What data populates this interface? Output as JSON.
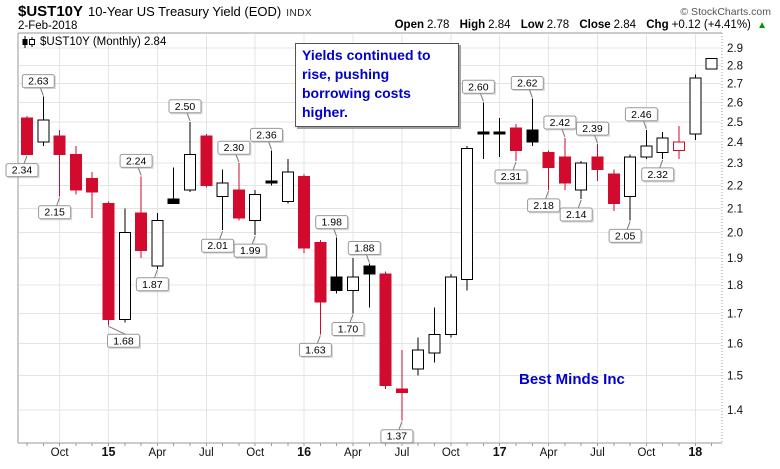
{
  "header": {
    "symbol": "$UST10Y",
    "title": "10-Year US Treasury Yield (EOD)",
    "exchange": "INDX",
    "copyright": "© StockCharts.com",
    "date": "2-Feb-2018",
    "quote_labels": {
      "open": "Open",
      "high": "High",
      "low": "Low",
      "close": "Close",
      "chg": "Chg"
    },
    "quote_values": {
      "open": "2.78",
      "high": "2.84",
      "low": "2.78",
      "close": "2.84",
      "chg": "+0.12 (+4.41%)"
    },
    "arrow_up": "▲"
  },
  "legend": {
    "text": "$UST10Y (Monthly) 2.84"
  },
  "annotation": {
    "text": "Yields continued to rise, pushing borrowing costs higher."
  },
  "watermark": {
    "text": "Best Minds Inc"
  },
  "colors": {
    "down": "#d20a2e",
    "up_fill": "#ffffff",
    "outline": "#000000",
    "grid": "#e4e4e4",
    "border": "#9a9a9a",
    "axis_text": "#111111",
    "label_border": "#999999",
    "annotation_blue": "#0000cc",
    "arrow_green": "#009600"
  },
  "chart_data": {
    "type": "candlestick",
    "timeframe": "Monthly",
    "scale": "log",
    "ylim": [
      1.4,
      2.9
    ],
    "y_ticks": [
      "2.9",
      "2.8",
      "2.7",
      "2.6",
      "2.5",
      "2.4",
      "2.3",
      "2.2",
      "2.1",
      "2.0",
      "1.9",
      "1.8",
      "1.7",
      "1.6",
      "1.5",
      "1.4"
    ],
    "x_ticks": [
      {
        "label": "Oct",
        "i": 2,
        "bold": false
      },
      {
        "label": "15",
        "i": 5,
        "bold": true
      },
      {
        "label": "Apr",
        "i": 8,
        "bold": false
      },
      {
        "label": "Jul",
        "i": 11,
        "bold": false
      },
      {
        "label": "Oct",
        "i": 14,
        "bold": false
      },
      {
        "label": "16",
        "i": 17,
        "bold": true
      },
      {
        "label": "Apr",
        "i": 20,
        "bold": false
      },
      {
        "label": "Jul",
        "i": 23,
        "bold": false
      },
      {
        "label": "Oct",
        "i": 26,
        "bold": false
      },
      {
        "label": "17",
        "i": 29,
        "bold": true
      },
      {
        "label": "Apr",
        "i": 32,
        "bold": false
      },
      {
        "label": "Jul",
        "i": 35,
        "bold": false
      },
      {
        "label": "Oct",
        "i": 38,
        "bold": false
      },
      {
        "label": "18",
        "i": 41,
        "bold": true
      }
    ],
    "candles": [
      {
        "m": "Aug 2014",
        "o": 2.52,
        "h": 2.53,
        "l": 2.34,
        "c": 2.34,
        "t": "down",
        "lab": "2.34",
        "side": "below"
      },
      {
        "m": "Sep 2014",
        "o": 2.4,
        "h": 2.63,
        "l": 2.38,
        "c": 2.51,
        "t": "up",
        "lab": "2.63",
        "side": "above"
      },
      {
        "m": "Oct 2014",
        "o": 2.43,
        "h": 2.46,
        "l": 2.15,
        "c": 2.34,
        "t": "down",
        "lab": "2.15",
        "side": "below"
      },
      {
        "m": "Nov 2014",
        "o": 2.34,
        "h": 2.38,
        "l": 2.16,
        "c": 2.18,
        "t": "down"
      },
      {
        "m": "Dec 2014",
        "o": 2.23,
        "h": 2.26,
        "l": 2.06,
        "c": 2.17,
        "t": "down"
      },
      {
        "m": "Jan 2015",
        "o": 2.12,
        "h": 2.13,
        "l": 1.66,
        "c": 1.68,
        "t": "down",
        "lab": "1.68",
        "side": "below",
        "dx": 15
      },
      {
        "m": "Feb 2015",
        "o": 1.68,
        "h": 2.1,
        "l": 1.67,
        "c": 2.0,
        "t": "up"
      },
      {
        "m": "Mar 2015",
        "o": 2.08,
        "h": 2.24,
        "l": 1.9,
        "c": 1.93,
        "t": "down",
        "lab": "2.24",
        "side": "above"
      },
      {
        "m": "Apr 2015",
        "o": 1.87,
        "h": 2.08,
        "l": 1.86,
        "c": 2.05,
        "t": "up",
        "lab": "1.87",
        "side": "below"
      },
      {
        "m": "May 2015",
        "o": 2.12,
        "h": 2.28,
        "l": 2.12,
        "c": 2.14,
        "t": "black"
      },
      {
        "m": "Jun 2015",
        "o": 2.18,
        "h": 2.5,
        "l": 2.17,
        "c": 2.34,
        "t": "up",
        "lab": "2.50",
        "side": "above"
      },
      {
        "m": "Jul 2015",
        "o": 2.43,
        "h": 2.44,
        "l": 2.19,
        "c": 2.2,
        "t": "down"
      },
      {
        "m": "Aug 2015",
        "o": 2.15,
        "h": 2.27,
        "l": 2.01,
        "c": 2.21,
        "t": "up",
        "lab": "2.01",
        "side": "below"
      },
      {
        "m": "Sep 2015",
        "o": 2.18,
        "h": 2.3,
        "l": 2.05,
        "c": 2.06,
        "t": "down",
        "lab": "2.30",
        "side": "above"
      },
      {
        "m": "Oct 2015",
        "o": 2.05,
        "h": 2.18,
        "l": 1.99,
        "c": 2.16,
        "t": "up",
        "lab": "1.99",
        "side": "below"
      },
      {
        "m": "Nov 2015",
        "o": 2.22,
        "h": 2.36,
        "l": 2.2,
        "c": 2.21,
        "t": "black",
        "lab": "2.36",
        "side": "above"
      },
      {
        "m": "Dec 2015",
        "o": 2.13,
        "h": 2.32,
        "l": 2.12,
        "c": 2.26,
        "t": "up"
      },
      {
        "m": "Jan 2016",
        "o": 2.24,
        "h": 2.25,
        "l": 1.92,
        "c": 1.94,
        "t": "down"
      },
      {
        "m": "Feb 2016",
        "o": 1.96,
        "h": 1.97,
        "l": 1.63,
        "c": 1.74,
        "t": "down",
        "lab": "1.63",
        "side": "below"
      },
      {
        "m": "Mar 2016",
        "o": 1.83,
        "h": 1.98,
        "l": 1.77,
        "c": 1.78,
        "t": "black",
        "lab": "1.98",
        "side": "above"
      },
      {
        "m": "Apr 2016",
        "o": 1.78,
        "h": 1.9,
        "l": 1.7,
        "c": 1.83,
        "t": "up",
        "lab": "1.70",
        "side": "below"
      },
      {
        "m": "May 2016",
        "o": 1.87,
        "h": 1.88,
        "l": 1.72,
        "c": 1.84,
        "t": "black",
        "lab": "1.88",
        "side": "above"
      },
      {
        "m": "Jun 2016",
        "o": 1.84,
        "h": 1.85,
        "l": 1.46,
        "c": 1.47,
        "t": "down"
      },
      {
        "m": "Jul 2016",
        "o": 1.46,
        "h": 1.58,
        "l": 1.37,
        "c": 1.45,
        "t": "down",
        "lab": "1.37",
        "side": "below"
      },
      {
        "m": "Aug 2016",
        "o": 1.52,
        "h": 1.62,
        "l": 1.5,
        "c": 1.58,
        "t": "up"
      },
      {
        "m": "Sep 2016",
        "o": 1.57,
        "h": 1.72,
        "l": 1.54,
        "c": 1.63,
        "t": "up"
      },
      {
        "m": "Oct 2016",
        "o": 1.63,
        "h": 1.84,
        "l": 1.62,
        "c": 1.83,
        "t": "up"
      },
      {
        "m": "Nov 2016",
        "o": 1.82,
        "h": 2.38,
        "l": 1.78,
        "c": 2.37,
        "t": "up"
      },
      {
        "m": "Dec 2016",
        "o": 2.44,
        "h": 2.6,
        "l": 2.32,
        "c": 2.45,
        "t": "black",
        "lab": "2.60",
        "side": "above"
      },
      {
        "m": "Jan 2017",
        "o": 2.44,
        "h": 2.52,
        "l": 2.33,
        "c": 2.45,
        "t": "black"
      },
      {
        "m": "Feb 2017",
        "o": 2.47,
        "h": 2.49,
        "l": 2.31,
        "c": 2.36,
        "t": "down",
        "lab": "2.31",
        "side": "below"
      },
      {
        "m": "Mar 2017",
        "o": 2.46,
        "h": 2.62,
        "l": 2.38,
        "c": 2.4,
        "t": "black",
        "lab": "2.62",
        "side": "above"
      },
      {
        "m": "Apr 2017",
        "o": 2.35,
        "h": 2.36,
        "l": 2.18,
        "c": 2.28,
        "t": "down",
        "lab": "2.18",
        "side": "below"
      },
      {
        "m": "May 2017",
        "o": 2.33,
        "h": 2.42,
        "l": 2.18,
        "c": 2.21,
        "t": "down",
        "lab": "2.42",
        "side": "above"
      },
      {
        "m": "Jun 2017",
        "o": 2.18,
        "h": 2.31,
        "l": 2.14,
        "c": 2.3,
        "t": "up",
        "lab": "2.14",
        "side": "below"
      },
      {
        "m": "Jul 2017",
        "o": 2.33,
        "h": 2.39,
        "l": 2.22,
        "c": 2.27,
        "t": "down",
        "lab": "2.39",
        "side": "above"
      },
      {
        "m": "Aug 2017",
        "o": 2.25,
        "h": 2.27,
        "l": 2.09,
        "c": 2.12,
        "t": "down"
      },
      {
        "m": "Sep 2017",
        "o": 2.15,
        "h": 2.34,
        "l": 2.05,
        "c": 2.33,
        "t": "up",
        "lab": "2.05",
        "side": "below"
      },
      {
        "m": "Oct 2017",
        "o": 2.33,
        "h": 2.46,
        "l": 2.32,
        "c": 2.38,
        "t": "up",
        "lab": "2.46",
        "side": "above"
      },
      {
        "m": "Nov 2017",
        "o": 2.35,
        "h": 2.45,
        "l": 2.32,
        "c": 2.42,
        "t": "up",
        "lab": "2.32",
        "side": "below"
      },
      {
        "m": "Dec 2017",
        "o": 2.36,
        "h": 2.48,
        "l": 2.32,
        "c": 2.4,
        "t": "up-red"
      },
      {
        "m": "Jan 2018",
        "o": 2.44,
        "h": 2.75,
        "l": 2.41,
        "c": 2.73,
        "t": "up"
      },
      {
        "m": "Feb 2018",
        "o": 2.78,
        "h": 2.84,
        "l": 2.78,
        "c": 2.84,
        "t": "up"
      }
    ]
  }
}
